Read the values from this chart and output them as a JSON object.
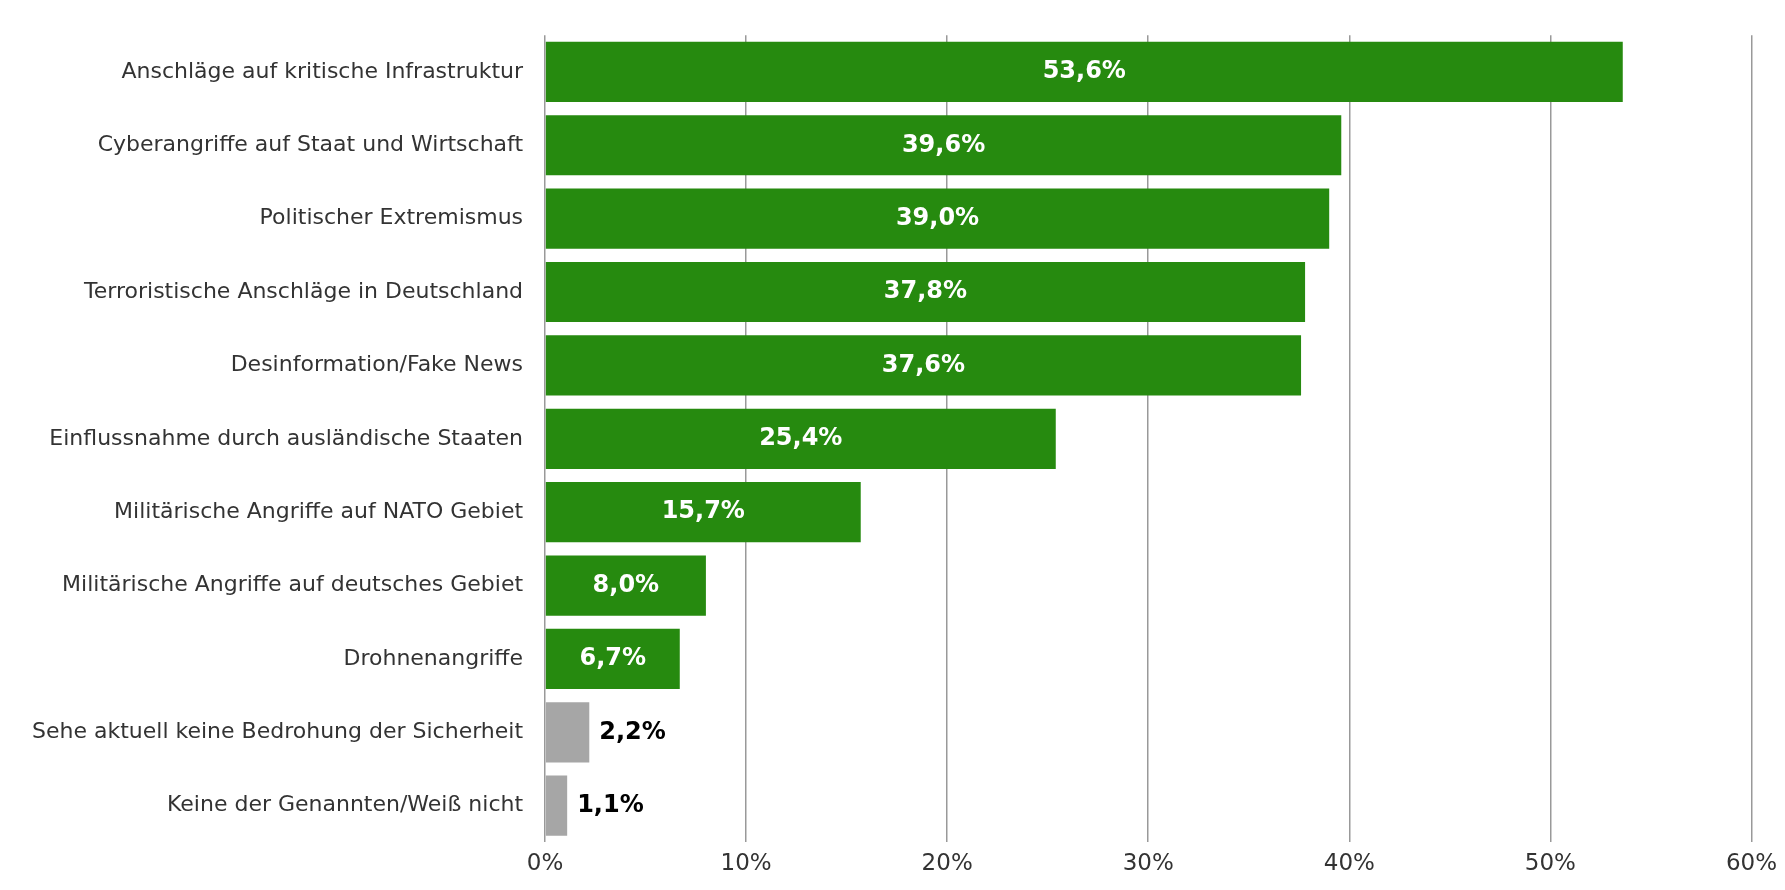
{
  "chart_data": {
    "type": "bar",
    "orientation": "horizontal",
    "categories": [
      "Anschläge auf kritische Infrastruktur",
      "Cyberangriffe auf Staat und Wirtschaft",
      "Politischer Extremismus",
      "Terroristische Anschläge in Deutschland",
      "Desinformation/Fake News",
      "Einflussnahme durch ausländische Staaten",
      "Militärische Angriffe auf NATO Gebiet",
      "Militärische Angriffe auf deutsches Gebiet",
      "Drohnenangriffe",
      "Sehe aktuell keine Bedrohung der Sicherheit",
      "Keine der Genannten/Weiß nicht"
    ],
    "values": [
      53.6,
      39.6,
      39.0,
      37.8,
      37.6,
      25.4,
      15.7,
      8.0,
      6.7,
      2.2,
      1.1
    ],
    "value_labels": [
      "53,6%",
      "39,6%",
      "39,0%",
      "37,8%",
      "37,6%",
      "25,4%",
      "15,7%",
      "8,0%",
      "6,7%",
      "2,2%",
      "1,1%"
    ],
    "colors": [
      "#268a0f",
      "#268a0f",
      "#268a0f",
      "#268a0f",
      "#268a0f",
      "#268a0f",
      "#268a0f",
      "#268a0f",
      "#268a0f",
      "#a6a6a6",
      "#a6a6a6"
    ],
    "xlim": [
      0,
      60
    ],
    "xticks": [
      {
        "value": 0,
        "label": "0%"
      },
      {
        "value": 10,
        "label": "10%"
      },
      {
        "value": 20,
        "label": "20%"
      },
      {
        "value": 30,
        "label": "30%"
      },
      {
        "value": 40,
        "label": "40%"
      },
      {
        "value": 50,
        "label": "50%"
      },
      {
        "value": 60,
        "label": "60%"
      }
    ],
    "grid": "x",
    "legend": false
  }
}
